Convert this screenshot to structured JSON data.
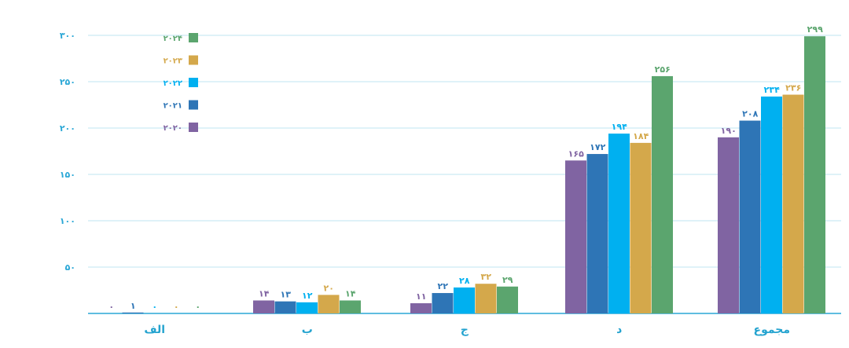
{
  "chart_data": {
    "type": "bar",
    "categories": [
      "الف",
      "ب",
      "ج",
      "د",
      "مجموع"
    ],
    "series": [
      {
        "name": "۲۰۲۰",
        "color": "#8064a2",
        "values": [
          0,
          14,
          11,
          165,
          190
        ],
        "labels": [
          "۰",
          "۱۴",
          "۱۱",
          "۱۶۵",
          "۱۹۰"
        ]
      },
      {
        "name": "۲۰۲۱",
        "color": "#2e75b6",
        "values": [
          1,
          13,
          22,
          172,
          208
        ],
        "labels": [
          "۱",
          "۱۳",
          "۲۲",
          "۱۷۲",
          "۲۰۸"
        ]
      },
      {
        "name": "۲۰۲۲",
        "color": "#00b0f0",
        "values": [
          0,
          12,
          28,
          194,
          234
        ],
        "labels": [
          "۰",
          "۱۲",
          "۲۸",
          "۱۹۴",
          "۲۳۴"
        ]
      },
      {
        "name": "۲۰۲۳",
        "color": "#d4a84b",
        "values": [
          0,
          20,
          32,
          184,
          236
        ],
        "labels": [
          "۰",
          "۲۰",
          "۳۲",
          "۱۸۴",
          "۲۳۶"
        ]
      },
      {
        "name": "۲۰۲۴",
        "color": "#5ba56e",
        "values": [
          0,
          14,
          29,
          256,
          299
        ],
        "labels": [
          "۰",
          "۱۴",
          "۲۹",
          "۲۵۶",
          "۲۹۹"
        ]
      }
    ],
    "ylim": [
      0,
      300
    ],
    "yticks": [
      50,
      100,
      150,
      200,
      250,
      300
    ],
    "ytick_labels": [
      "۵۰",
      "۱۰۰",
      "۱۵۰",
      "۲۰۰",
      "۲۵۰",
      "۳۰۰"
    ],
    "grid": true,
    "legend": "top-left",
    "gridColor": "#bfe4f2",
    "axisColor": "#2aa7d6",
    "title": "",
    "xlabel": "",
    "ylabel": ""
  }
}
